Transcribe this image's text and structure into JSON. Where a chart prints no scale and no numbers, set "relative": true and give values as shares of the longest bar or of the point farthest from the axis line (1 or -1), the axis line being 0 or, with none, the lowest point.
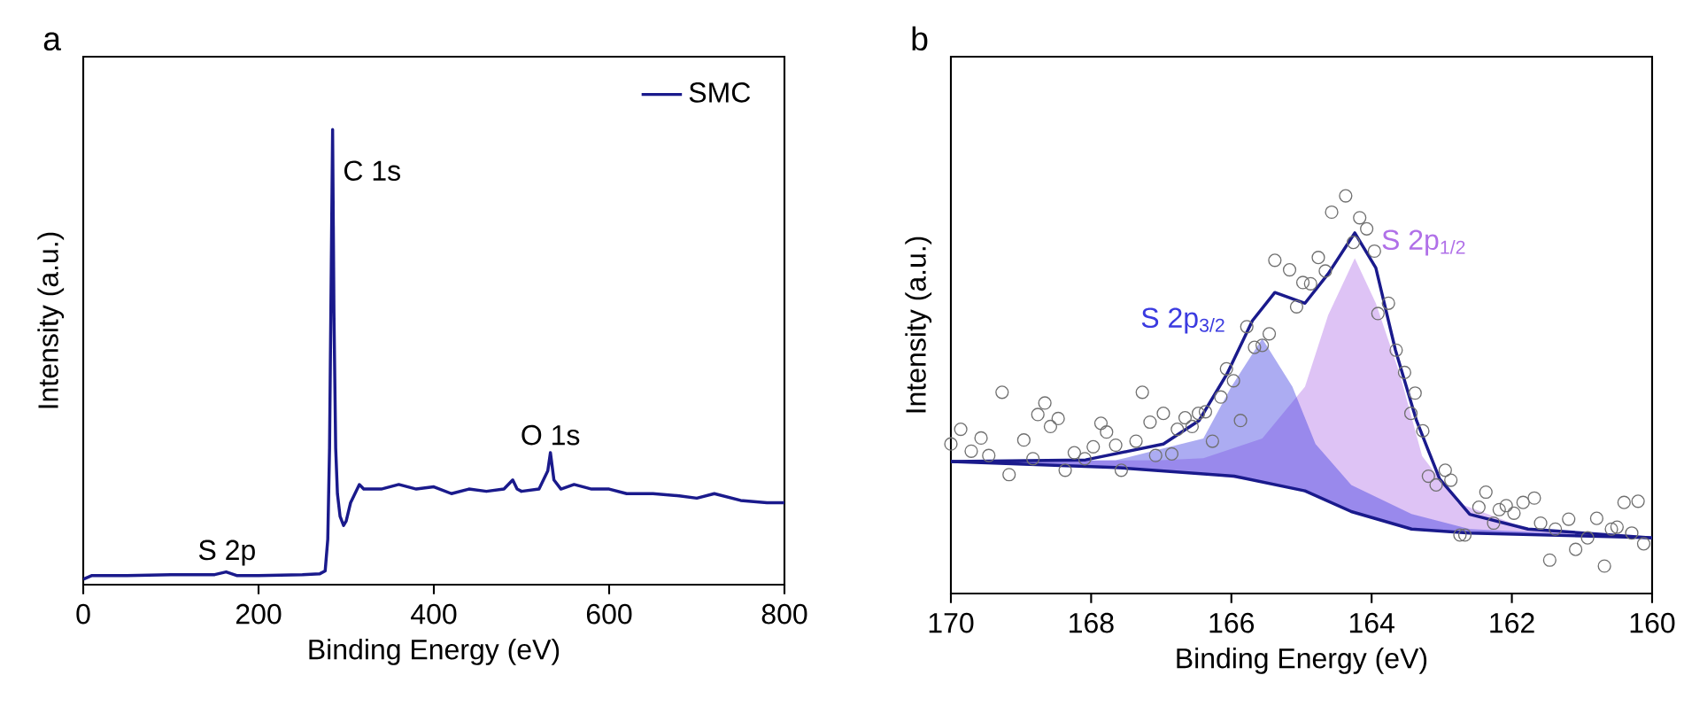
{
  "chart_data": [
    {
      "type": "line",
      "xlabel": "Binding Energy (eV)",
      "ylabel": "Intensity (a.u.)",
      "relative": true,
      "tick_labels": "x",
      "legend": "top right",
      "xlim": [
        0,
        800
      ],
      "xticks": [
        0,
        200,
        400,
        600,
        800
      ],
      "annotations": [
        "a",
        {
          "text": "C 1s",
          "x": 285,
          "y": 1.0
        },
        {
          "text": "O 1s",
          "x": 533,
          "y": 0.29
        },
        {
          "text": "S 2p",
          "x": 164,
          "y": 0.025
        }
      ],
      "x": [
        0,
        10,
        50,
        100,
        150,
        163,
        175,
        200,
        250,
        270,
        276,
        279,
        281,
        283,
        284.5,
        286,
        288,
        290,
        293,
        297,
        300,
        305,
        310,
        315,
        320,
        340,
        360,
        380,
        400,
        420,
        440,
        460,
        480,
        490,
        495,
        500,
        520,
        530,
        533,
        537,
        545,
        560,
        580,
        600,
        620,
        650,
        680,
        700,
        720,
        750,
        780,
        800
      ],
      "series": [
        {
          "name": "SMC",
          "color": "#1a1a8c",
          "values": [
            0.012,
            0.02,
            0.02,
            0.022,
            0.022,
            0.028,
            0.02,
            0.02,
            0.022,
            0.024,
            0.03,
            0.1,
            0.3,
            0.7,
            1.0,
            0.6,
            0.3,
            0.2,
            0.15,
            0.13,
            0.14,
            0.18,
            0.2,
            0.22,
            0.21,
            0.21,
            0.22,
            0.21,
            0.215,
            0.2,
            0.21,
            0.205,
            0.21,
            0.23,
            0.21,
            0.205,
            0.21,
            0.25,
            0.29,
            0.23,
            0.21,
            0.22,
            0.21,
            0.21,
            0.2,
            0.2,
            0.195,
            0.19,
            0.2,
            0.185,
            0.18,
            0.18
          ]
        }
      ]
    },
    {
      "type": "scatter",
      "xlabel": "Binding Energy (eV)",
      "ylabel": "Intensity (a.u.)",
      "relative": true,
      "tick_labels": "x",
      "xlim": [
        170,
        160
      ],
      "xticks": [
        170,
        168,
        166,
        164,
        162,
        160
      ],
      "annotations": [
        "b"
      ],
      "series": [
        {
          "name": "S 2p$_{1/2}$",
          "type": "area",
          "color": "#b070e8",
          "x": [
            170,
            167.0,
            166.4,
            165.56,
            164.95,
            164.62,
            164.24,
            163.94,
            163.6,
            163.28,
            162.77,
            161.77,
            160
          ],
          "values": [
            0.332,
            0.335,
            0.34,
            0.39,
            0.52,
            0.7,
            0.843,
            0.73,
            0.553,
            0.346,
            0.228,
            0.162,
            0.14
          ]
        },
        {
          "name": "S 2p$_{3/2}$",
          "type": "area",
          "color": "#3a3ae0",
          "x": [
            170,
            167.65,
            166.4,
            166.0,
            165.56,
            165.13,
            164.8,
            164.29,
            163.43,
            162.6,
            160
          ],
          "values": [
            0.332,
            0.335,
            0.39,
            0.52,
            0.641,
            0.52,
            0.376,
            0.273,
            0.2,
            0.162,
            0.14
          ]
        },
        {
          "type": "scatter",
          "marker": "circle",
          "color": "#707070",
          "x": [
            170.0,
            169.86,
            169.71,
            169.57,
            169.46,
            169.27,
            169.17,
            168.96,
            168.83,
            168.76,
            168.66,
            168.58,
            168.47,
            168.37,
            168.24,
            168.09,
            167.97,
            167.86,
            167.78,
            167.65,
            167.57,
            167.36,
            167.27,
            167.16,
            167.08,
            166.97,
            166.85,
            166.77,
            166.66,
            166.56,
            166.47,
            166.37,
            166.27,
            166.15,
            166.07,
            165.97,
            165.87,
            165.78,
            165.67,
            165.56,
            165.46,
            165.38,
            165.17,
            165.07,
            164.98,
            164.87,
            164.76,
            164.66,
            164.57,
            164.37,
            164.26,
            164.17,
            164.07,
            163.96,
            163.91,
            163.76,
            163.65,
            163.53,
            163.44,
            163.38,
            163.27,
            163.19,
            163.08,
            162.95,
            162.87,
            162.74,
            162.67,
            162.47,
            162.37,
            162.26,
            162.18,
            162.08,
            161.97,
            161.84,
            161.68,
            161.59,
            161.46,
            161.38,
            161.19,
            161.09,
            160.92,
            160.79,
            160.68,
            160.58,
            160.5,
            160.4,
            160.29,
            160.2,
            160.12
          ],
          "values": [
            0.376,
            0.413,
            0.358,
            0.391,
            0.347,
            0.506,
            0.299,
            0.386,
            0.339,
            0.45,
            0.479,
            0.42,
            0.44,
            0.31,
            0.354,
            0.339,
            0.369,
            0.428,
            0.406,
            0.373,
            0.31,
            0.383,
            0.506,
            0.431,
            0.347,
            0.453,
            0.351,
            0.413,
            0.442,
            0.42,
            0.453,
            0.457,
            0.383,
            0.494,
            0.565,
            0.535,
            0.435,
            0.671,
            0.619,
            0.624,
            0.653,
            0.838,
            0.814,
            0.721,
            0.782,
            0.779,
            0.845,
            0.811,
            0.959,
            1.0,
            0.883,
            0.945,
            0.917,
            0.861,
            0.704,
            0.73,
            0.612,
            0.556,
            0.453,
            0.504,
            0.409,
            0.295,
            0.273,
            0.31,
            0.285,
            0.147,
            0.147,
            0.217,
            0.255,
            0.177,
            0.211,
            0.221,
            0.202,
            0.229,
            0.24,
            0.177,
            0.084,
            0.162,
            0.187,
            0.111,
            0.14,
            0.189,
            0.069,
            0.162,
            0.167,
            0.229,
            0.152,
            0.232,
            0.125
          ]
        },
        {
          "type": "line",
          "color": "#1a1a8c",
          "x": [
            170,
            167.65,
            165.96,
            164.95,
            164.29,
            163.43,
            162.6,
            160
          ],
          "values": [
            0.332,
            0.317,
            0.295,
            0.258,
            0.206,
            0.162,
            0.152,
            0.14
          ]
        },
        {
          "type": "line",
          "color": "#1a1a8c",
          "x": [
            170,
            168.08,
            166.97,
            166.46,
            166.06,
            165.7,
            165.38,
            164.95,
            164.62,
            164.24,
            163.94,
            163.66,
            163.36,
            163.03,
            162.6,
            161.77,
            160
          ],
          "values": [
            0.332,
            0.336,
            0.376,
            0.435,
            0.553,
            0.686,
            0.757,
            0.73,
            0.804,
            0.907,
            0.819,
            0.612,
            0.435,
            0.288,
            0.199,
            0.162,
            0.14
          ]
        }
      ]
    }
  ]
}
